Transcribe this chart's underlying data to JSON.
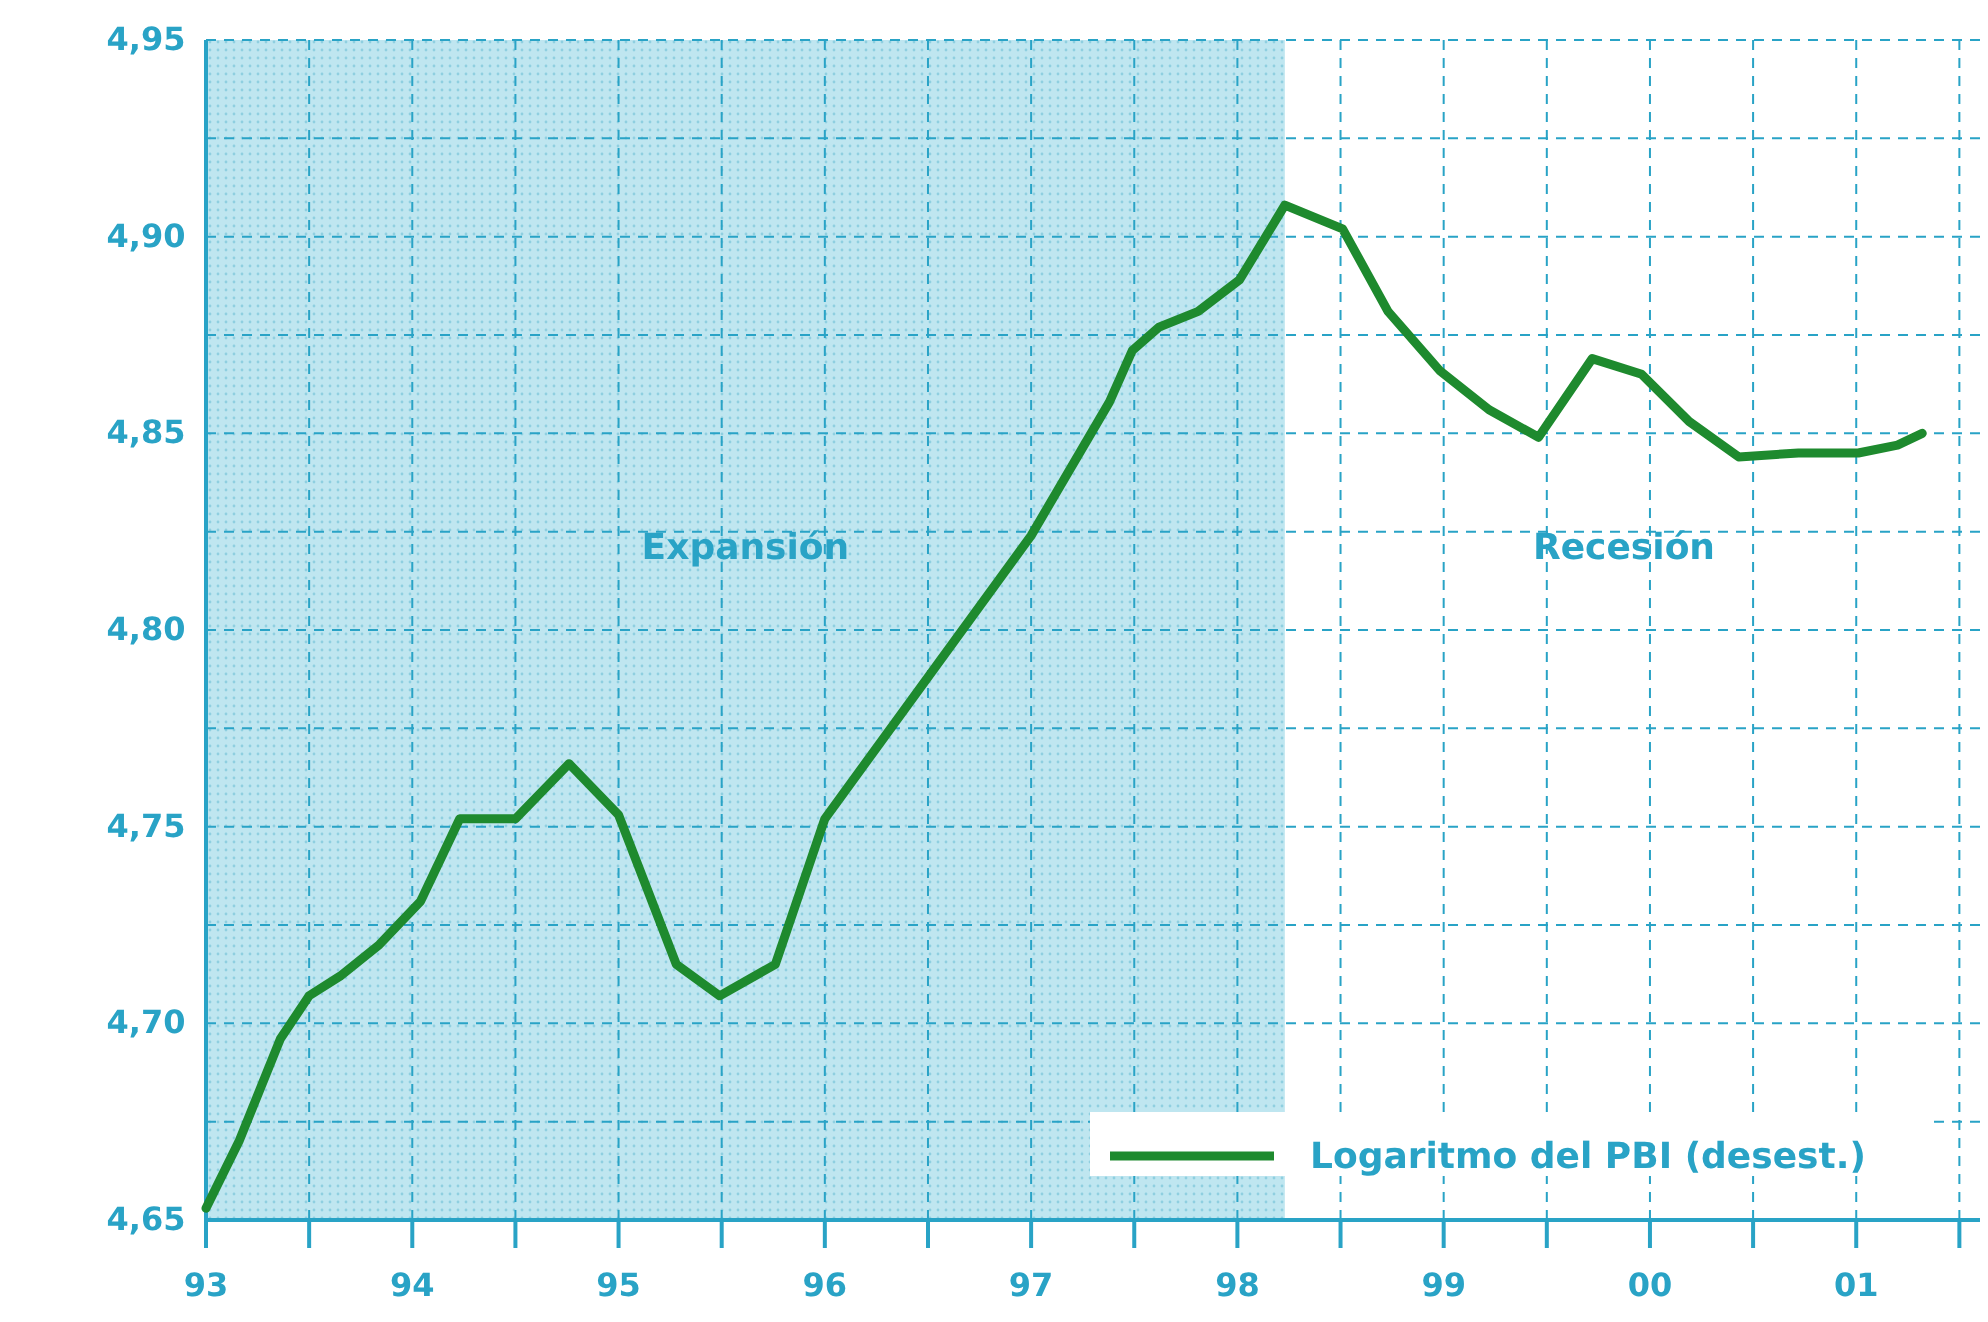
{
  "chart_data": {
    "type": "line",
    "x": [
      1993.0,
      1993.16,
      1993.36,
      1993.5,
      1993.65,
      1993.84,
      1994.04,
      1994.23,
      1994.5,
      1994.76,
      1995.0,
      1995.28,
      1995.49,
      1995.76,
      1996.0,
      1997.0,
      1997.38,
      1997.49,
      1997.62,
      1997.81,
      1998.01,
      1998.23,
      1998.51,
      1998.73,
      1998.98,
      1999.22,
      1999.46,
      1999.72,
      1999.96,
      2000.19,
      2000.43,
      2000.72,
      2001.01,
      2001.2,
      2001.32
    ],
    "series": [
      {
        "name": "Logaritmo del PBI (desest.)",
        "color": "#1e8a2e",
        "values": [
          4.653,
          4.67,
          4.696,
          4.707,
          4.712,
          4.72,
          4.731,
          4.752,
          4.752,
          4.766,
          4.753,
          4.715,
          4.707,
          4.715,
          4.752,
          4.824,
          4.858,
          4.871,
          4.877,
          4.881,
          4.889,
          4.908,
          4.902,
          4.881,
          4.866,
          4.856,
          4.849,
          4.869,
          4.865,
          4.853,
          4.844,
          4.845,
          4.845,
          4.847,
          4.85
        ]
      }
    ],
    "xlim": [
      1993,
      2001.6
    ],
    "xticks": [
      {
        "value": 1993,
        "label": "93"
      },
      {
        "value": 1993.5,
        "label": null
      },
      {
        "value": 1994,
        "label": "94"
      },
      {
        "value": 1994.5,
        "label": null
      },
      {
        "value": 1995,
        "label": "95"
      },
      {
        "value": 1995.5,
        "label": null
      },
      {
        "value": 1996,
        "label": "96"
      },
      {
        "value": 1996.5,
        "label": null
      },
      {
        "value": 1997,
        "label": "97"
      },
      {
        "value": 1997.5,
        "label": null
      },
      {
        "value": 1998,
        "label": "98"
      },
      {
        "value": 1998.5,
        "label": null
      },
      {
        "value": 1999,
        "label": "99"
      },
      {
        "value": 1999.5,
        "label": null
      },
      {
        "value": 2000,
        "label": "00"
      },
      {
        "value": 2000.5,
        "label": null
      },
      {
        "value": 2001,
        "label": "01"
      },
      {
        "value": 2001.5,
        "label": null
      }
    ],
    "ylim": [
      4.65,
      4.95
    ],
    "yticks": [
      {
        "value": 4.65,
        "label": "4,65"
      },
      {
        "value": 4.675,
        "label": null
      },
      {
        "value": 4.7,
        "label": "4,70"
      },
      {
        "value": 4.725,
        "label": null
      },
      {
        "value": 4.75,
        "label": "4,75"
      },
      {
        "value": 4.775,
        "label": null
      },
      {
        "value": 4.8,
        "label": "4,80"
      },
      {
        "value": 4.825,
        "label": null
      },
      {
        "value": 4.85,
        "label": "4,85"
      },
      {
        "value": 4.875,
        "label": null
      },
      {
        "value": 4.9,
        "label": "4,90"
      },
      {
        "value": 4.925,
        "label": null
      },
      {
        "value": 4.95,
        "label": "4,95"
      }
    ],
    "bands": [
      {
        "axis": "x",
        "from": 1993,
        "to": 1998.23,
        "label": "Expansión",
        "color": "#bfe6f0"
      }
    ],
    "annotations": [
      "Recesión"
    ],
    "grid": true,
    "legend": "bottom right",
    "line_style": "solid",
    "marker": "none"
  }
}
